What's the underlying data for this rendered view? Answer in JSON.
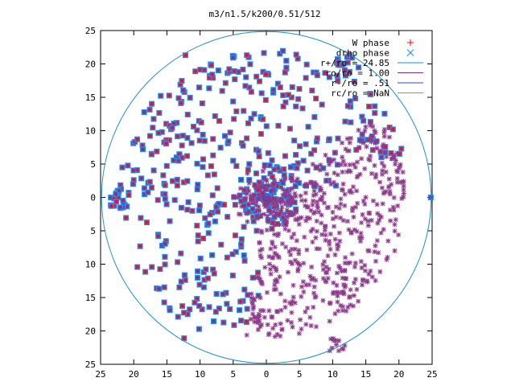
{
  "chart_data": {
    "type": "scatter",
    "title": "m3/n1.5/k200/0.51/512",
    "xlabel": "",
    "ylabel": "",
    "xlim": [
      -25,
      25
    ],
    "ylim": [
      -25,
      25
    ],
    "x_ticks": [
      "25",
      "20",
      "15",
      "10",
      "5",
      "0",
      "5",
      "10",
      "15",
      "20",
      "25"
    ],
    "y_ticks": [
      "25",
      "20",
      "15",
      "10",
      "5",
      "0",
      "5",
      "10",
      "15",
      "20",
      "25"
    ],
    "grid": false,
    "legend_position": "top-right",
    "series": [
      {
        "name": "W phase",
        "marker": "plus",
        "color": "#ff0000"
      },
      {
        "name": "drho phase",
        "marker": "cross",
        "color": "#1e90ff"
      },
      {
        "name": "r+/ro = 24.85",
        "style": "line",
        "color": "#1f8fd0",
        "radius": 24.85
      },
      {
        "name": "ro/ro = 1.00",
        "style": "line",
        "color": "#8b2c8b",
        "radius": 1.0
      },
      {
        "name": "r-/ro = .51",
        "style": "line",
        "color": "#1f4fd0",
        "radius": 0.51
      },
      {
        "name": "rc/ro = NaN",
        "style": "line",
        "color": "#20c0c0",
        "radius": null
      }
    ],
    "colors": {
      "w_phase": "#ff0000",
      "drho_phase": "#1e90ff",
      "overlap_square": "#7a4a9a",
      "star": "#8b3a8b",
      "outer_circle": "#1f8fd0"
    }
  }
}
